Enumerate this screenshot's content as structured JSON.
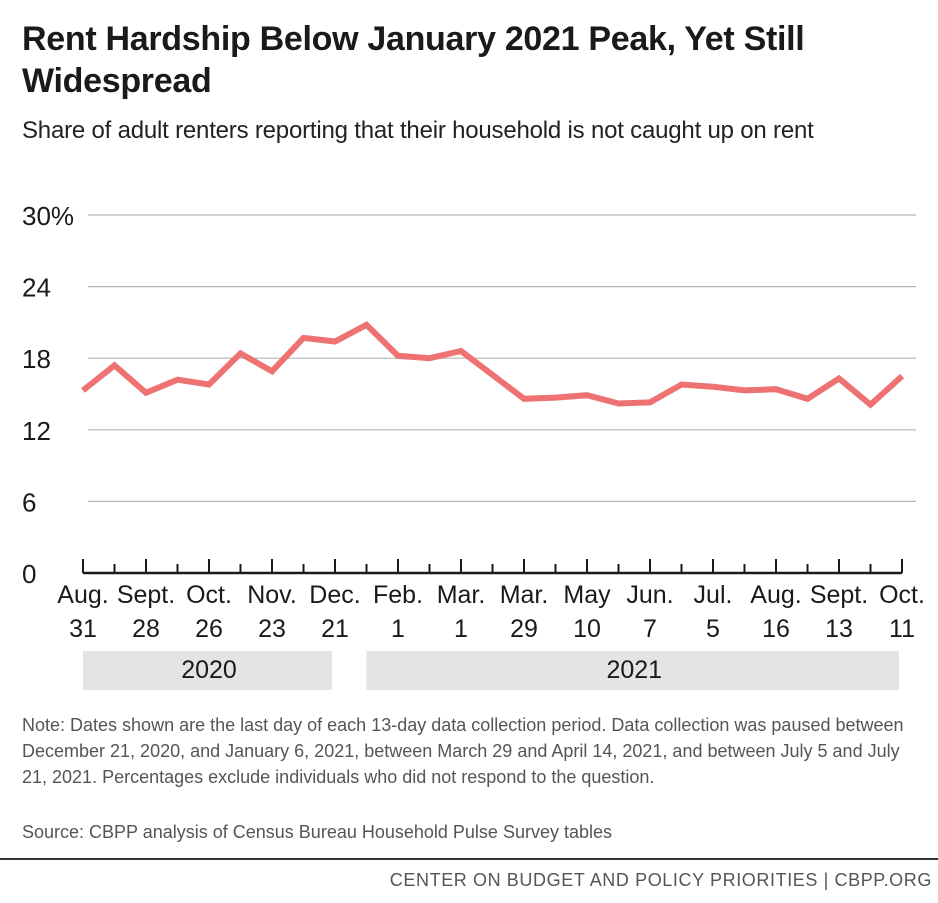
{
  "title": "Rent Hardship Below January 2021 Peak, Yet Still Widespread",
  "subtitle": "Share of adult renters reporting that their household is not caught up on rent",
  "note": "Note: Dates shown are the last day of each 13-day data collection period. Data collection was paused between December 21, 2020, and January 6, 2021, between March 29 and April 14, 2021, and between July 5 and July 21, 2021. Percentages exclude individuals who did not respond to the question.",
  "source": "Source: CBPP analysis of Census Bureau Household Pulse Survey tables",
  "footer": "CENTER ON BUDGET AND POLICY PRIORITIES | CBPP.ORG",
  "colors": {
    "line": "#ee7272",
    "grid": "#b5b5b5",
    "year_band": "#e4e4e4"
  },
  "chart_data": {
    "type": "line",
    "title": "Rent Hardship Below January 2021 Peak, Yet Still Widespread",
    "subtitle": "Share of adult renters reporting that their household is not caught up on rent",
    "xlabel": "",
    "ylabel": "",
    "ylim": [
      0,
      30
    ],
    "yticks": [
      "0",
      "6",
      "12",
      "18",
      "24",
      "30%"
    ],
    "ytick_values": [
      0,
      6,
      12,
      18,
      24,
      30
    ],
    "grid": true,
    "x_tick_labels": [
      [
        "Aug.",
        "31"
      ],
      [
        "Sept.",
        "28"
      ],
      [
        "Oct.",
        "26"
      ],
      [
        "Nov.",
        "23"
      ],
      [
        "Dec.",
        "21"
      ],
      [
        "Feb.",
        "1"
      ],
      [
        "Mar.",
        "1"
      ],
      [
        "Mar.",
        "29"
      ],
      [
        "May",
        "10"
      ],
      [
        "Jun.",
        "7"
      ],
      [
        "Jul.",
        "5"
      ],
      [
        "Aug.",
        "16"
      ],
      [
        "Sept.",
        "13"
      ],
      [
        "Oct.",
        "11"
      ]
    ],
    "year_bands": [
      {
        "label": "2020",
        "from_point": 0,
        "to_point": 8
      },
      {
        "label": "2021",
        "from_point": 9,
        "to_point": 26
      }
    ],
    "series": [
      {
        "name": "Share not caught up on rent",
        "values": [
          15.3,
          17.4,
          15.1,
          16.2,
          15.8,
          18.4,
          16.9,
          19.7,
          19.4,
          20.8,
          18.2,
          18.0,
          18.6,
          16.6,
          14.6,
          14.7,
          14.9,
          14.2,
          14.3,
          15.8,
          15.6,
          15.3,
          15.4,
          14.6,
          16.3,
          14.1,
          16.5
        ]
      }
    ]
  }
}
